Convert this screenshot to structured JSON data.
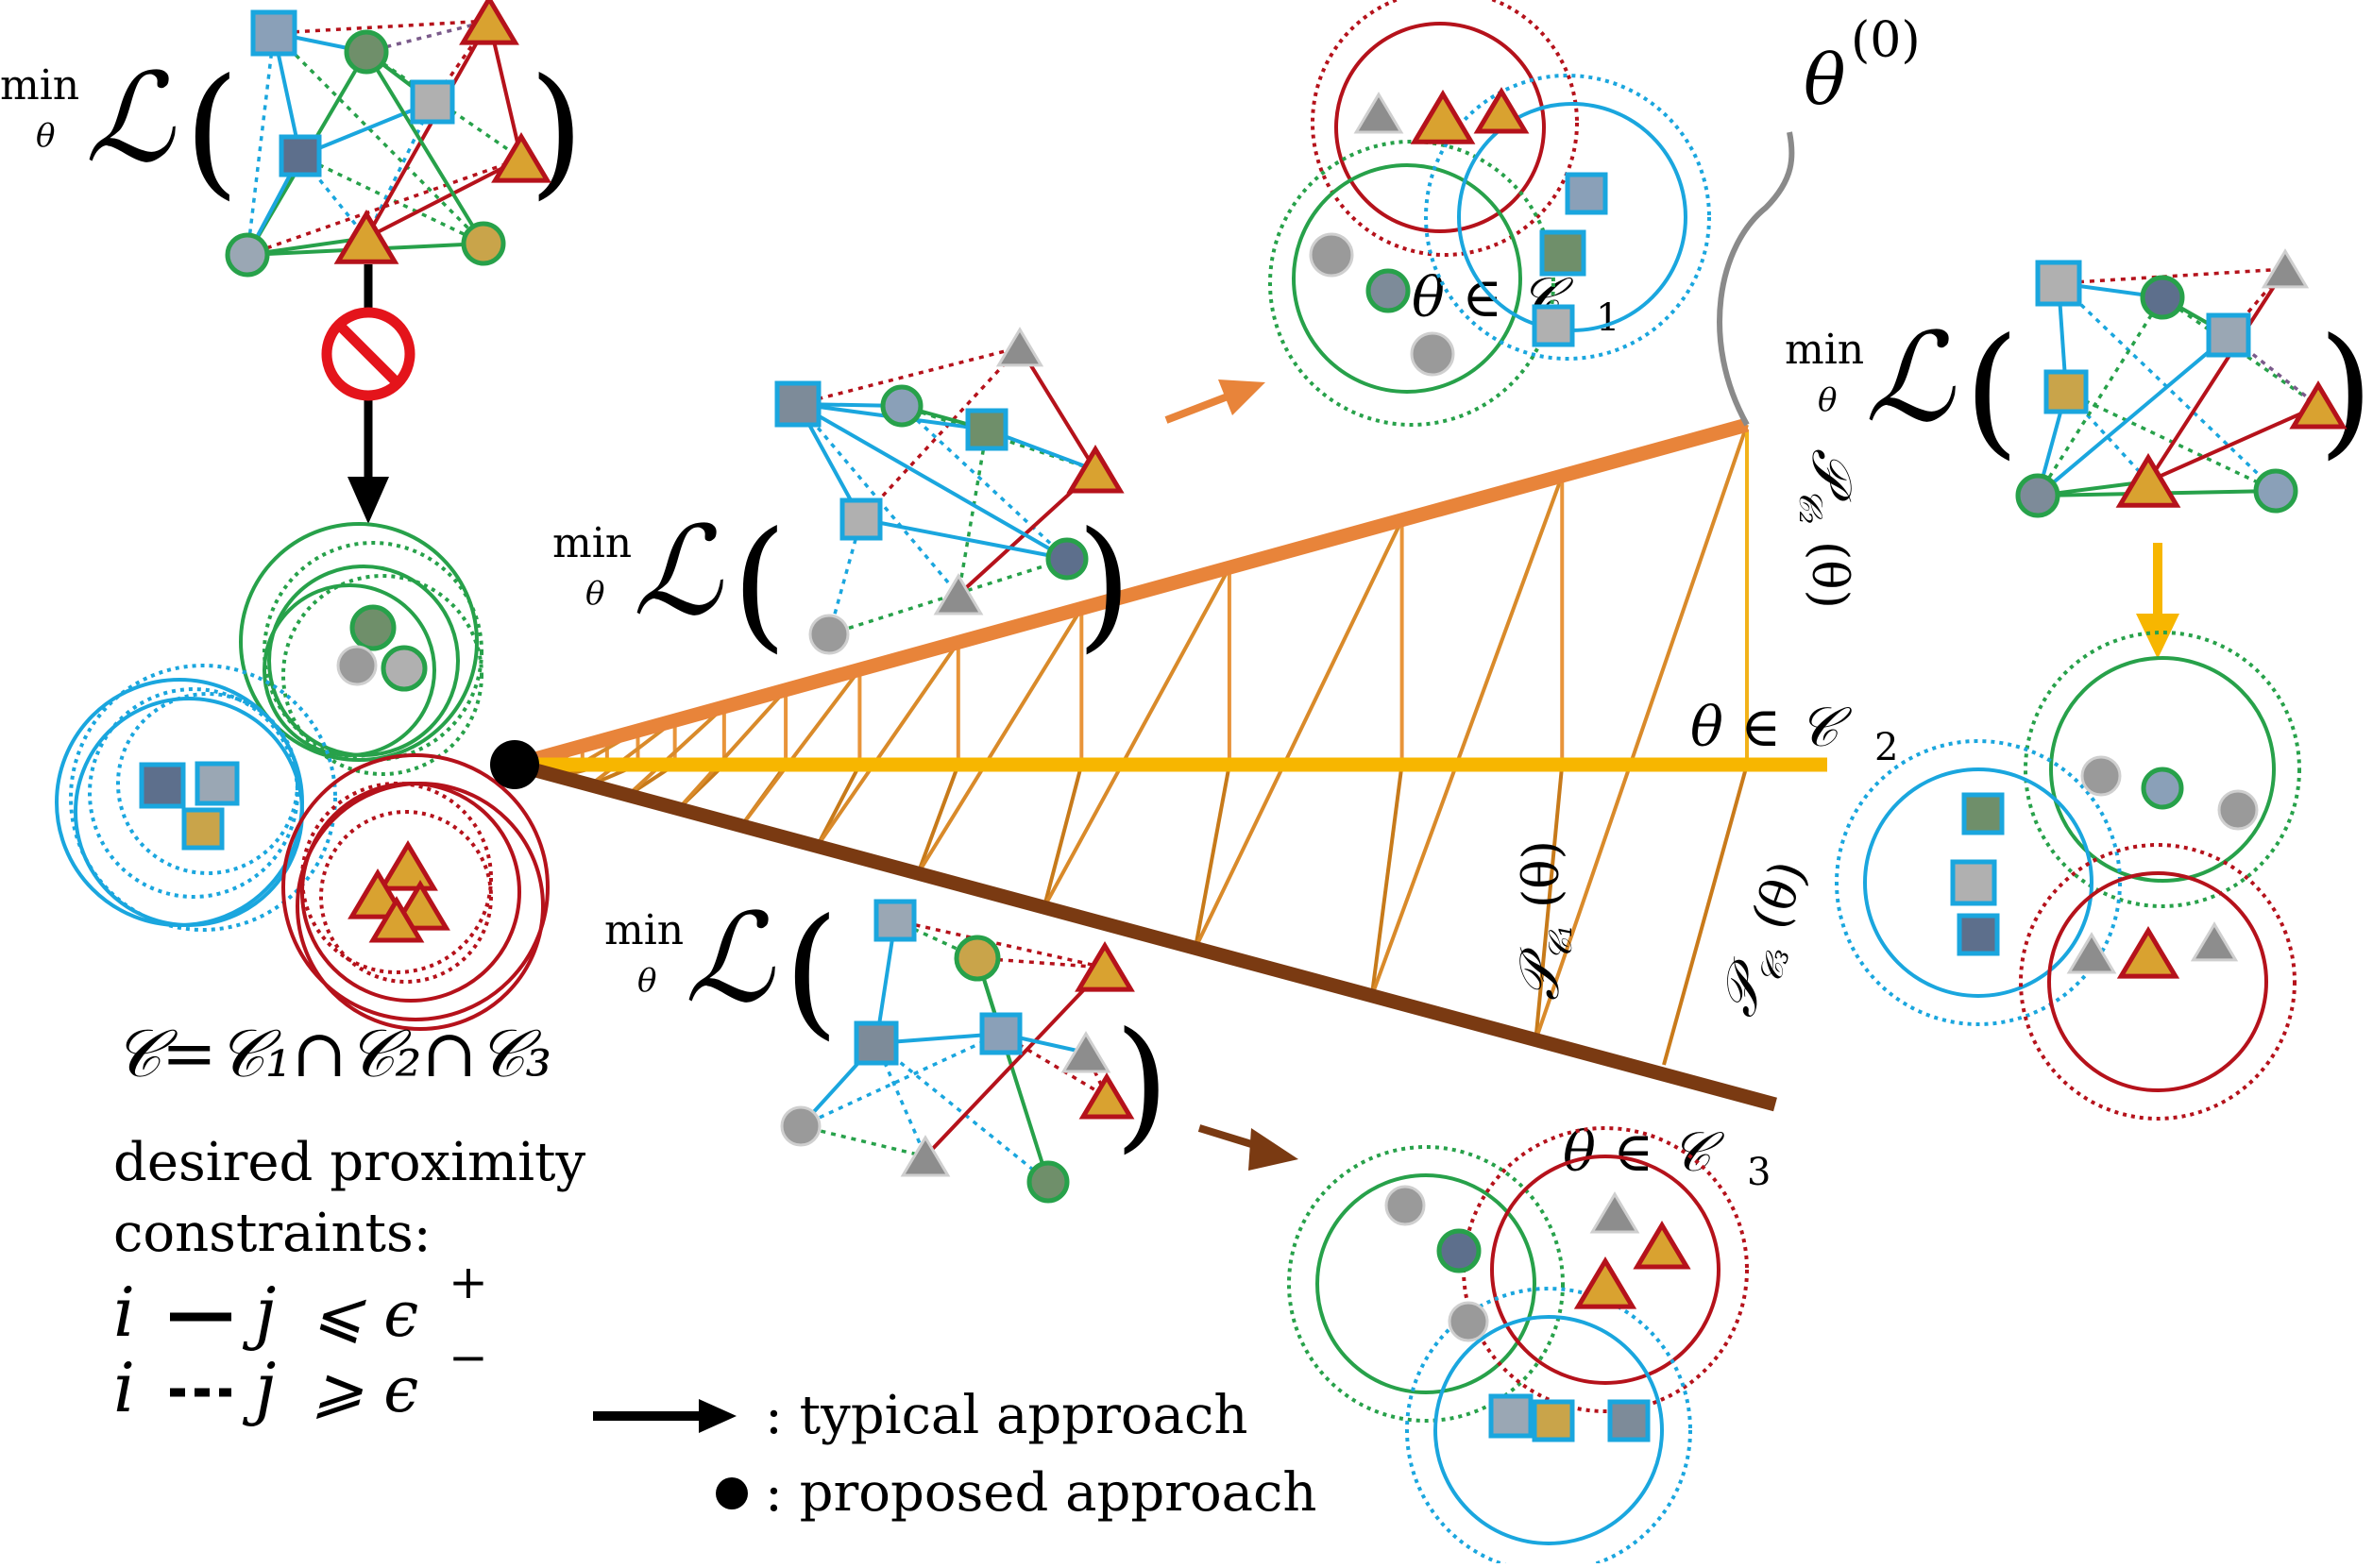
{
  "colors": {
    "green": "#27a14a",
    "blue": "#1aa6de",
    "red": "#b5121b",
    "proj_c1": "#e8843a",
    "proj_c2": "#f7b600",
    "proj_c3": "#7a3a12",
    "gray": "#8a8a8a",
    "forbid": "#e4141b"
  },
  "loss": {
    "min_word": "min",
    "sub_var": "θ",
    "L": "ℒ",
    "open_paren": "(",
    "close_paren": ")"
  },
  "theta0": {
    "base": "θ",
    "sup": "(0)"
  },
  "sets": {
    "c1_label": "θ ∈ 𝒞",
    "c1_sub": "1",
    "c2_label": "θ ∈ 𝒞",
    "c2_sub": "2",
    "c3_label": "θ ∈ 𝒞",
    "c3_sub": "3"
  },
  "projections": {
    "p2": "𝒫",
    "p2_sub": "𝒞₂",
    "p2_arg": "(θ)",
    "p1": "𝒫",
    "p1_sub": "𝒞₁",
    "p1_arg": "(θ)",
    "p3": "𝒫",
    "p3_sub": "𝒞₃",
    "p3_arg": "(θ)"
  },
  "intersection": {
    "text": "𝒞=𝒞₁∩𝒞₂∩𝒞₃"
  },
  "constraints": {
    "line1": "desired proximity",
    "line2": "constraints:",
    "pos_i": "i",
    "pos_j": "j",
    "pos_rel": "⩽ ϵ",
    "pos_sup": "+",
    "neg_i": "i",
    "neg_j": "j",
    "neg_rel": "⩾ ϵ",
    "neg_sup": "−"
  },
  "legend": {
    "typical": ": typical approach",
    "proposed": ": proposed approach"
  },
  "icons": {
    "forbid": "no-entry-icon",
    "photo": "car-photo-icon"
  }
}
